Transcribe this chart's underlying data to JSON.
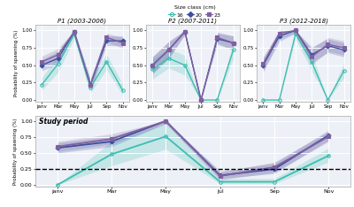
{
  "colors": {
    "16": "#3dbdb0",
    "20": "#3a4fa0",
    "23": "#8060a0"
  },
  "panel_titles": [
    "P1 (2003-2006)",
    "P2 (2007-2011)",
    "P3 (2012-2018)"
  ],
  "x_labels": [
    "janv",
    "Mar",
    "May",
    "Jul",
    "Sep",
    "Nov"
  ],
  "P1": {
    "16": [
      0.22,
      0.52,
      0.95,
      0.18,
      0.55,
      0.14
    ],
    "20": [
      0.5,
      0.6,
      0.98,
      0.22,
      0.85,
      0.85
    ],
    "23": [
      0.55,
      0.65,
      0.98,
      0.22,
      0.9,
      0.82
    ],
    "16_lo": [
      0.14,
      0.4,
      0.88,
      0.1,
      0.44,
      0.07
    ],
    "16_hi": [
      0.32,
      0.64,
      1.0,
      0.28,
      0.66,
      0.23
    ],
    "20_lo": [
      0.42,
      0.52,
      0.94,
      0.14,
      0.78,
      0.78
    ],
    "20_hi": [
      0.58,
      0.7,
      1.0,
      0.3,
      0.92,
      0.92
    ],
    "23_lo": [
      0.47,
      0.56,
      0.94,
      0.14,
      0.84,
      0.74
    ],
    "23_hi": [
      0.63,
      0.74,
      1.0,
      0.3,
      0.96,
      0.9
    ]
  },
  "P2": {
    "16": [
      0.44,
      0.6,
      0.5,
      0.0,
      0.0,
      0.72
    ],
    "20": [
      0.5,
      0.72,
      0.98,
      0.0,
      0.88,
      0.82
    ],
    "23": [
      0.5,
      0.72,
      0.98,
      0.0,
      0.9,
      0.82
    ],
    "16_lo": [
      0.3,
      0.46,
      0.36,
      0.0,
      0.0,
      0.6
    ],
    "16_hi": [
      0.58,
      0.74,
      0.64,
      0.0,
      0.0,
      0.84
    ],
    "20_lo": [
      0.38,
      0.6,
      0.94,
      0.0,
      0.8,
      0.72
    ],
    "20_hi": [
      0.62,
      0.84,
      1.0,
      0.0,
      0.96,
      0.92
    ],
    "23_lo": [
      0.38,
      0.6,
      0.94,
      0.0,
      0.82,
      0.72
    ],
    "23_hi": [
      0.62,
      0.84,
      1.0,
      0.0,
      0.98,
      0.92
    ]
  },
  "P3": {
    "16": [
      0.0,
      0.0,
      0.95,
      0.55,
      0.0,
      0.42
    ],
    "20": [
      0.5,
      0.92,
      1.0,
      0.65,
      0.78,
      0.72
    ],
    "23": [
      0.52,
      0.96,
      1.0,
      0.62,
      0.8,
      0.75
    ],
    "16_lo": [
      0.0,
      0.0,
      0.88,
      0.42,
      0.0,
      0.32
    ],
    "16_hi": [
      0.0,
      0.0,
      1.0,
      0.68,
      0.0,
      0.54
    ],
    "20_lo": [
      0.4,
      0.84,
      0.96,
      0.54,
      0.68,
      0.62
    ],
    "20_hi": [
      0.6,
      1.0,
      1.0,
      0.76,
      0.88,
      0.82
    ],
    "23_lo": [
      0.42,
      0.88,
      0.96,
      0.5,
      0.7,
      0.65
    ],
    "23_hi": [
      0.62,
      1.0,
      1.0,
      0.74,
      0.9,
      0.85
    ]
  },
  "study": {
    "16": [
      0.0,
      0.48,
      0.76,
      0.05,
      0.05,
      0.46
    ],
    "20": [
      0.58,
      0.68,
      1.0,
      0.15,
      0.25,
      0.78
    ],
    "23": [
      0.6,
      0.72,
      1.0,
      0.14,
      0.28,
      0.76
    ],
    "16_lo": [
      0.0,
      0.3,
      0.56,
      0.02,
      0.02,
      0.36
    ],
    "16_hi": [
      0.0,
      0.68,
      0.96,
      0.1,
      0.1,
      0.58
    ],
    "20_lo": [
      0.5,
      0.6,
      0.96,
      0.1,
      0.18,
      0.7
    ],
    "20_hi": [
      0.66,
      0.76,
      1.0,
      0.22,
      0.34,
      0.86
    ],
    "23_lo": [
      0.52,
      0.64,
      0.96,
      0.08,
      0.2,
      0.68
    ],
    "23_hi": [
      0.68,
      0.8,
      1.0,
      0.2,
      0.36,
      0.84
    ]
  },
  "dashed_line_y": 0.25,
  "ylabel": "Probability of spawning (%)",
  "bg_color": "#edf1f7",
  "grid_color": "#ffffff",
  "study_label": "Study period",
  "legend_title": "Size class (cm)"
}
